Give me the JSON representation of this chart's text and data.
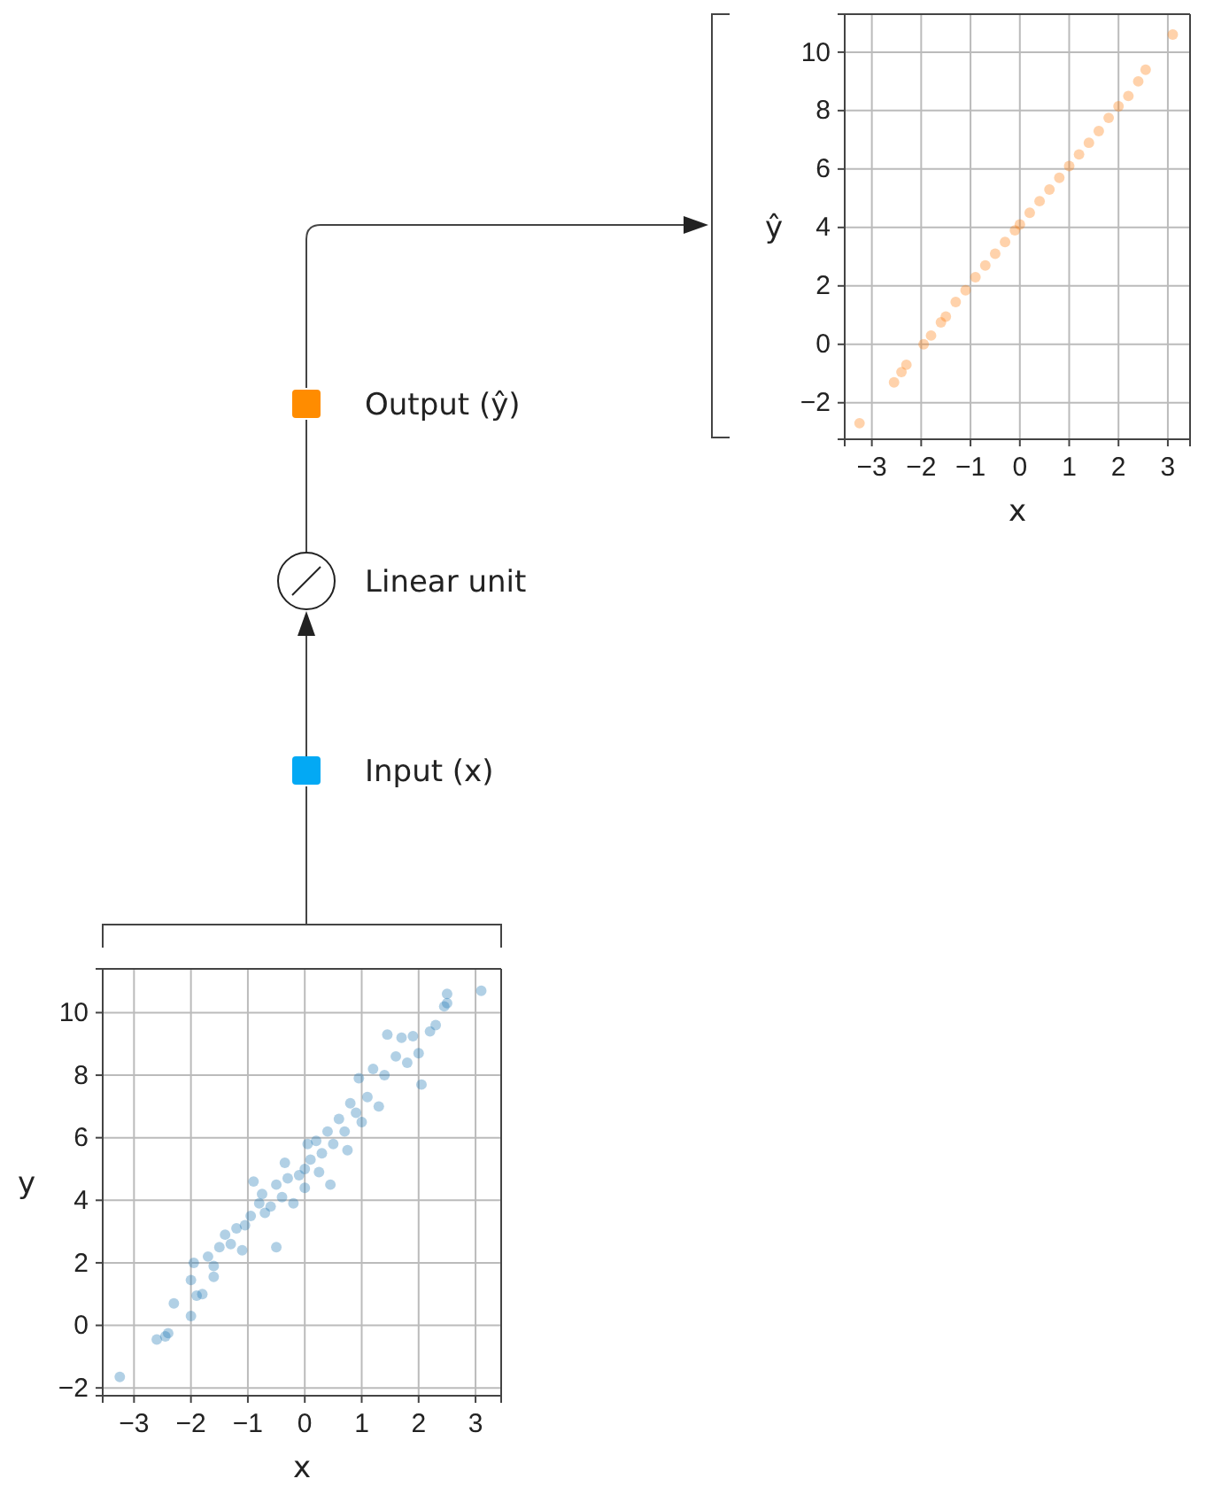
{
  "chart_data": [
    {
      "type": "scatter",
      "xlabel": "x",
      "ylabel": "ŷ",
      "xlim": [
        -3.55,
        3.45
      ],
      "ylim": [
        -3.25,
        11.3
      ],
      "xticks": [
        {
          "value": -3,
          "label": "−3"
        },
        {
          "value": -2,
          "label": "−2"
        },
        {
          "value": -1,
          "label": "−1"
        },
        0,
        1,
        2,
        3
      ],
      "yticks": [
        {
          "value": -2,
          "label": "−2"
        },
        0,
        2,
        4,
        6,
        8,
        10
      ],
      "grid": true,
      "marker": "circle",
      "series": [
        {
          "color": "#ff7f0e",
          "x": [
            -3.25,
            -2.55,
            -2.4,
            -2.3,
            -1.95,
            -1.8,
            -1.6,
            -1.5,
            -1.3,
            -1.1,
            -0.9,
            -0.7,
            -0.5,
            -0.3,
            -0.1,
            0,
            0.2,
            0.4,
            0.6,
            0.8,
            1.0,
            1.2,
            1.4,
            1.6,
            1.8,
            2.0,
            2.2,
            2.4,
            2.55,
            3.1
          ],
          "values": [
            -2.7,
            -1.3,
            -0.95,
            -0.7,
            0.0,
            0.3,
            0.75,
            0.95,
            1.45,
            1.85,
            2.3,
            2.7,
            3.1,
            3.5,
            3.9,
            4.1,
            4.5,
            4.9,
            5.3,
            5.7,
            6.1,
            6.5,
            6.9,
            7.3,
            7.75,
            8.15,
            8.5,
            9.0,
            9.4,
            10.6
          ]
        }
      ]
    },
    {
      "type": "scatter",
      "xlabel": "x",
      "ylabel": "y",
      "xlim": [
        -3.55,
        3.45
      ],
      "ylim": [
        -2.25,
        11.4
      ],
      "xticks": [
        {
          "value": -3,
          "label": "−3"
        },
        {
          "value": -2,
          "label": "−2"
        },
        {
          "value": -1,
          "label": "−1"
        },
        0,
        1,
        2,
        3
      ],
      "yticks": [
        {
          "value": -2,
          "label": "−2"
        },
        0,
        2,
        4,
        6,
        8,
        10
      ],
      "grid": true,
      "marker": "circle",
      "series": [
        {
          "color": "#1f77b4",
          "x": [
            -3.25,
            -2.6,
            -2.45,
            -2.4,
            -2.3,
            -2.0,
            -2.0,
            -1.95,
            -1.9,
            -1.8,
            -1.7,
            -1.6,
            -1.6,
            -1.5,
            -1.4,
            -1.3,
            -1.2,
            -1.1,
            -1.05,
            -0.95,
            -0.9,
            -0.8,
            -0.75,
            -0.7,
            -0.6,
            -0.5,
            -0.5,
            -0.4,
            -0.35,
            -0.3,
            -0.2,
            -0.1,
            0,
            0,
            0.05,
            0.1,
            0.2,
            0.25,
            0.3,
            0.4,
            0.45,
            0.5,
            0.6,
            0.7,
            0.75,
            0.8,
            0.9,
            0.95,
            1.0,
            1.1,
            1.2,
            1.3,
            1.4,
            1.45,
            1.6,
            1.7,
            1.8,
            1.9,
            2.0,
            2.05,
            2.2,
            2.3,
            2.45,
            2.5,
            2.5,
            3.1
          ],
          "values": [
            -1.65,
            -0.45,
            -0.35,
            -0.25,
            0.7,
            0.3,
            1.45,
            2.0,
            0.95,
            1.0,
            2.2,
            1.55,
            1.9,
            2.5,
            2.9,
            2.6,
            3.1,
            2.4,
            3.2,
            3.5,
            4.6,
            3.9,
            4.2,
            3.6,
            3.8,
            2.5,
            4.5,
            4.1,
            5.2,
            4.7,
            3.9,
            4.8,
            5.0,
            4.4,
            5.8,
            5.3,
            5.9,
            4.9,
            5.5,
            6.2,
            4.5,
            5.8,
            6.6,
            6.2,
            5.6,
            7.1,
            6.8,
            7.9,
            6.5,
            7.3,
            8.2,
            7.0,
            8.0,
            9.3,
            8.6,
            9.2,
            8.4,
            9.25,
            8.7,
            7.7,
            9.4,
            9.6,
            10.2,
            10.6,
            10.3,
            10.7
          ]
        }
      ]
    },
    {
      "type": "other",
      "annotations": [
        "Output (ŷ)",
        "Linear unit",
        "Input (x)"
      ]
    }
  ]
}
